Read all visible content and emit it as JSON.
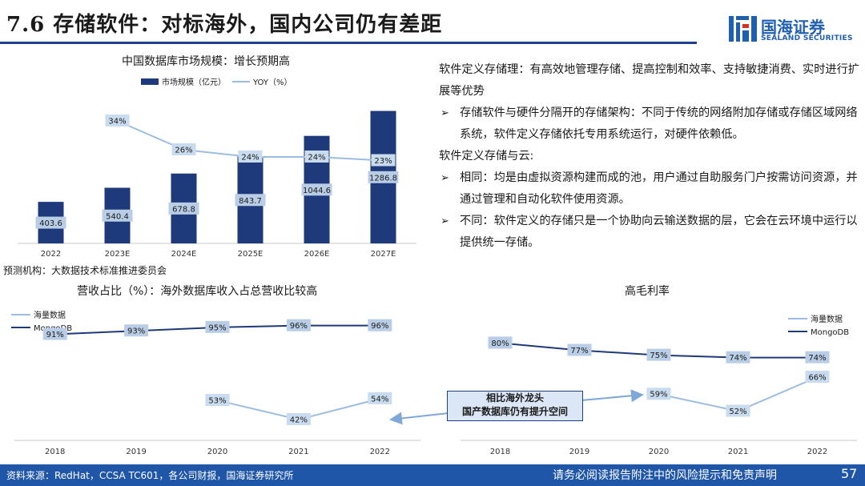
{
  "header": {
    "title": "7.6 存储软件：对标海外，国内公司仍有差距"
  },
  "logo": {
    "name_cn": "国海证券",
    "name_en": "SEALAND SECURITIES"
  },
  "top_chart": {
    "title": "中国数据库市场规模：增长预期高",
    "source": "预测机构：大数据技术标准推进委员会"
  },
  "left_chart": {
    "title": "营收占比（%）：海外数据库收入占总营收比较高"
  },
  "right_chart": {
    "title": "高毛利率"
  },
  "callout": {
    "line1": "相比海外龙头",
    "line2": "国产数据库仍有提升空间"
  },
  "right_text": {
    "p1": "软件定义存储理：有高效地管理存储、提高控制和效率、支持敏捷消费、实时进行扩展等优势",
    "b1": "存储软件与硬件分隔开的存储架构：不同于传统的网络附加存储或存储区域网络系统，软件定义存储依托专用系统运行，对硬件依赖低。",
    "p2": "软件定义存储与云:",
    "b2": "相同：均是由虚拟资源构建而成的池，用户通过自助服务门户按需访问资源，并通过管理和自动化软件使用资源。",
    "b3": "不同：软件定义的存储只是一个协助向云输送数据的层，它会在云环境中运行以提供统一存储。"
  },
  "footer": {
    "source": "资料来源：RedHat，CCSA TC601，各公司财报，国海证券研究所",
    "disclaimer": "请务必阅读报告附注中的风险提示和免责声明",
    "page": "57"
  },
  "colors": {
    "dark_navy": "#1f3a7a",
    "light_blue": "#9cbde3",
    "brand_blue": "#1f56a8"
  },
  "chart_data": [
    {
      "type": "bar",
      "title": "中国数据库市场规模：增长预期高",
      "categories": [
        "2022",
        "2023E",
        "2024E",
        "2025E",
        "2026E",
        "2027E"
      ],
      "series": [
        {
          "name": "市场规模（亿元）",
          "type": "bar",
          "values": [
            403.6,
            540.4,
            678.8,
            843.7,
            1044.6,
            1286.8
          ],
          "labels": [
            "403.6",
            "540.4",
            "678.8",
            "843.7",
            "1044.6",
            "1286.8"
          ]
        },
        {
          "name": "YOY（%）",
          "type": "line",
          "values": [
            null,
            34,
            26,
            24,
            24,
            23
          ],
          "labels": [
            null,
            "34%",
            "26%",
            "24%",
            "24%",
            "23%"
          ]
        }
      ],
      "ylim": [
        0,
        1400
      ],
      "yoy_lim": [
        0,
        40
      ]
    },
    {
      "type": "line",
      "title": "营收占比（%）：海外数据库收入占总营收比较高",
      "categories": [
        "2018",
        "2019",
        "2020",
        "2021",
        "2022"
      ],
      "series": [
        {
          "name": "海量数据",
          "values": [
            null,
            null,
            53,
            42,
            54
          ],
          "labels": [
            null,
            null,
            "53%",
            "42%",
            "54%"
          ]
        },
        {
          "name": "MongoDB",
          "values": [
            91,
            93,
            95,
            96,
            96
          ],
          "labels": [
            "91%",
            "93%",
            "95%",
            "96%",
            "96%"
          ]
        }
      ],
      "ylim": [
        30,
        100
      ]
    },
    {
      "type": "line",
      "title": "高毛利率",
      "categories": [
        "2018",
        "2019",
        "2020",
        "2021",
        "2022"
      ],
      "series": [
        {
          "name": "海量数据",
          "values": [
            null,
            null,
            59,
            52,
            66
          ],
          "labels": [
            null,
            null,
            "59%",
            "52%",
            "66%"
          ]
        },
        {
          "name": "MongoDB",
          "values": [
            80,
            77,
            75,
            74,
            74
          ],
          "labels": [
            "80%",
            "77%",
            "75%",
            "74%",
            "74%"
          ]
        }
      ],
      "ylim": [
        40,
        90
      ]
    }
  ]
}
